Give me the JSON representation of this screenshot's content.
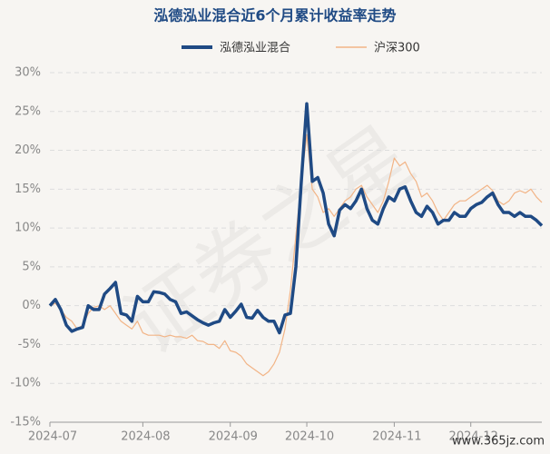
{
  "chart_data": {
    "type": "line",
    "title": "泓德泓业混合近6个月累计收益率走势",
    "categories": [
      "2024-07",
      null,
      null,
      null,
      null,
      null,
      null,
      null,
      null,
      null,
      null,
      null,
      null,
      null,
      null,
      null,
      null,
      "2024-08",
      null,
      null,
      null,
      null,
      null,
      null,
      null,
      null,
      null,
      null,
      null,
      null,
      null,
      null,
      null,
      "2024-09",
      null,
      null,
      null,
      null,
      null,
      null,
      null,
      null,
      null,
      null,
      null,
      null,
      null,
      "2024-10",
      null,
      null,
      null,
      null,
      null,
      null,
      null,
      null,
      null,
      null,
      null,
      null,
      null,
      null,
      null,
      "2024-11",
      null,
      null,
      null,
      null,
      null,
      null,
      null,
      null,
      null,
      null,
      null,
      null,
      null,
      "2024-12",
      null,
      null,
      null,
      null,
      null,
      null,
      null,
      null,
      null,
      null,
      null,
      null,
      null
    ],
    "series": [
      {
        "name": "泓德泓业混合",
        "color": "#1f4a84",
        "values": [
          0,
          0.8,
          -0.5,
          -2.5,
          -3.3,
          -3,
          -2.8,
          0,
          -0.5,
          -0.5,
          1.5,
          2.2,
          3,
          -1,
          -1.2,
          -2,
          1.2,
          0.5,
          0.5,
          1.8,
          1.7,
          1.5,
          0.8,
          0.5,
          -1,
          -0.8,
          -1.3,
          -1.8,
          -2.2,
          -2.5,
          -2.2,
          -2,
          -0.5,
          -1.5,
          -0.7,
          0.2,
          -1.5,
          -1.6,
          -0.6,
          -1.5,
          -2,
          -2,
          -3.5,
          -1.2,
          -1,
          5,
          16,
          26,
          16,
          16.5,
          14.5,
          10.5,
          9,
          12.3,
          13,
          12.5,
          13.5,
          15,
          12.5,
          11,
          10.5,
          12.5,
          14,
          13.5,
          15,
          15.3,
          13.5,
          12,
          11.5,
          12.8,
          12,
          10.5,
          11,
          11,
          12,
          11.5,
          11.5,
          12.5,
          13,
          13.3,
          14,
          14.5,
          13,
          12,
          12,
          11.5,
          12,
          11.5,
          11.5,
          11,
          10.3
        ]
      },
      {
        "name": "沪深300",
        "color": "#f2b486",
        "values": [
          0,
          0.3,
          -0.5,
          -1.5,
          -2,
          -3,
          -2.5,
          -1,
          -0.2,
          0,
          -0.5,
          0,
          -1,
          -2,
          -2.5,
          -3,
          -2,
          -3.5,
          -3.8,
          -3.8,
          -3.8,
          -4,
          -3.8,
          -4,
          -4,
          -4.2,
          -3.8,
          -4.5,
          -4.6,
          -5,
          -5,
          -5.5,
          -4.5,
          -5.8,
          -6,
          -6.5,
          -7.5,
          -8,
          -8.5,
          -9,
          -8.5,
          -7.5,
          -6,
          -3,
          2,
          9,
          16,
          22,
          15,
          14,
          12,
          12.5,
          11.5,
          12.5,
          13.5,
          14,
          15,
          15.5,
          14,
          13,
          12,
          13.5,
          16,
          19,
          18,
          18.5,
          17,
          16,
          14,
          14.5,
          13.5,
          12,
          11,
          12,
          13,
          13.5,
          13.5,
          14,
          14.5,
          15,
          15.5,
          14.8,
          13.5,
          13,
          13.5,
          14.5,
          14.8,
          14.5,
          15,
          14,
          13.3
        ]
      }
    ],
    "ylim": [
      -15,
      30
    ],
    "yticks": [
      {
        "value": -15,
        "label": "-15%"
      },
      {
        "value": -10,
        "label": "-10%"
      },
      {
        "value": -5,
        "label": "-5%"
      },
      {
        "value": 0,
        "label": "0%"
      },
      {
        "value": 5,
        "label": "5%"
      },
      {
        "value": 10,
        "label": "10%"
      },
      {
        "value": 15,
        "label": "15%"
      },
      {
        "value": 20,
        "label": "20%"
      },
      {
        "value": 25,
        "label": "25%"
      },
      {
        "value": 30,
        "label": "30%"
      }
    ],
    "grid": true,
    "legend": "top",
    "watermark": "证券之星",
    "source_mark": "www.365jz.com"
  }
}
